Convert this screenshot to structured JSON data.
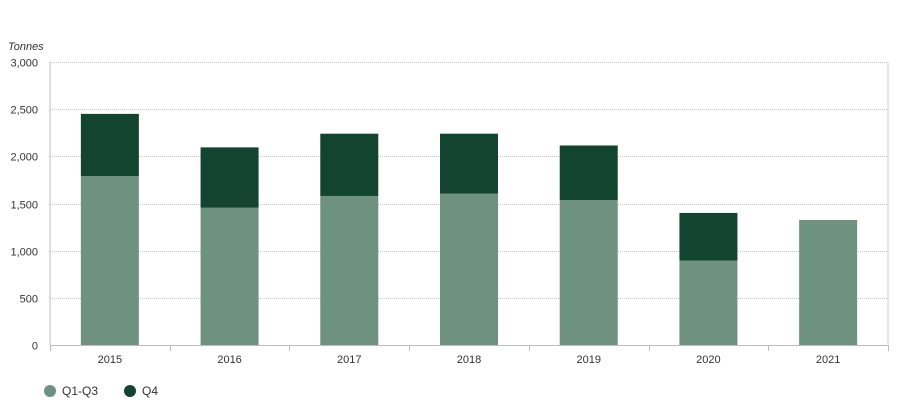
{
  "chart_data": {
    "type": "bar",
    "stacked": true,
    "unit_label": "Tonnes",
    "categories": [
      "2015",
      "2016",
      "2017",
      "2018",
      "2019",
      "2020",
      "2021"
    ],
    "series": [
      {
        "name": "Q1-Q3",
        "color": "#6f917f",
        "values": [
          1790,
          1455,
          1580,
          1605,
          1535,
          895,
          1325
        ]
      },
      {
        "name": "Q4",
        "color": "#12442f",
        "values": [
          660,
          640,
          660,
          635,
          580,
          505,
          0
        ]
      }
    ],
    "ylim": [
      0,
      3000
    ],
    "yticks": [
      0,
      500,
      1000,
      1500,
      2000,
      2500,
      3000
    ],
    "ytick_labels": [
      "0",
      "500",
      "1,000",
      "1,500",
      "2,000",
      "2,500",
      "3,000"
    ],
    "grid": true,
    "legend_position": "bottom-left"
  }
}
